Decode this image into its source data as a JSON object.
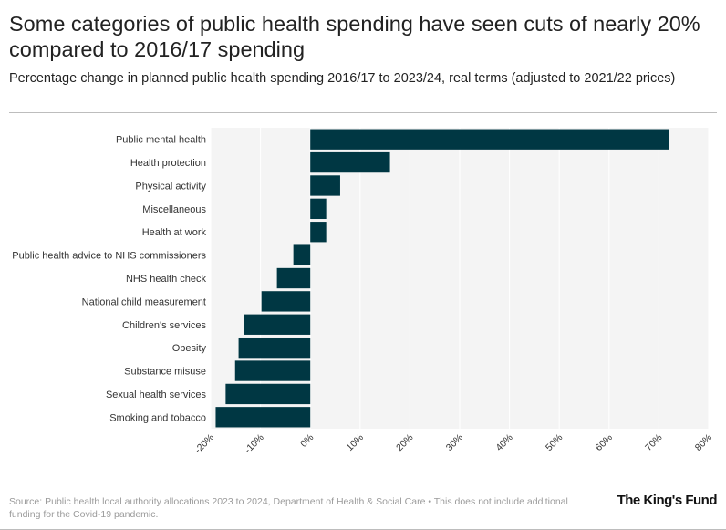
{
  "title": "Some categories of public health spending have seen cuts of nearly 20% compared to 2016/17 spending",
  "subtitle": "Percentage change in planned public health spending 2016/17 to 2023/24, real terms (adjusted to 2021/22 prices)",
  "source": "Source: Public health local authority allocations 2023 to 2024, Department of Health & Social Care • This does not include additional funding for the Covid-19 pandemic.",
  "brand": "The King's Fund",
  "colors": {
    "bar": "#003743",
    "plot_bg": "#f4f4f4",
    "grid": "#ffffff"
  },
  "chart_data": {
    "type": "bar",
    "orientation": "horizontal",
    "title": "Some categories of public health spending have seen cuts of nearly 20% compared to 2016/17 spending",
    "xlabel": "",
    "ylabel": "",
    "xlim": [
      -20,
      80
    ],
    "xticks": [
      -20,
      -10,
      0,
      10,
      20,
      30,
      40,
      50,
      60,
      70,
      80
    ],
    "tick_labels": [
      "-20%",
      "-10%",
      "0%",
      "10%",
      "20%",
      "30%",
      "40%",
      "50%",
      "60%",
      "70%",
      "80%"
    ],
    "grid": true,
    "categories": [
      "Public mental health",
      "Health protection",
      "Physical activity",
      "Miscellaneous",
      "Health at work",
      "Public health advice to NHS commissioners",
      "NHS health check",
      "National child measurement",
      "Children's services",
      "Obesity",
      "Substance misuse",
      "Sexual health services",
      "Smoking and tobacco"
    ],
    "values": [
      72,
      16,
      6,
      3.2,
      3.2,
      -3.4,
      -6.7,
      -9.8,
      -13.4,
      -14.4,
      -15.1,
      -17,
      -19
    ]
  }
}
